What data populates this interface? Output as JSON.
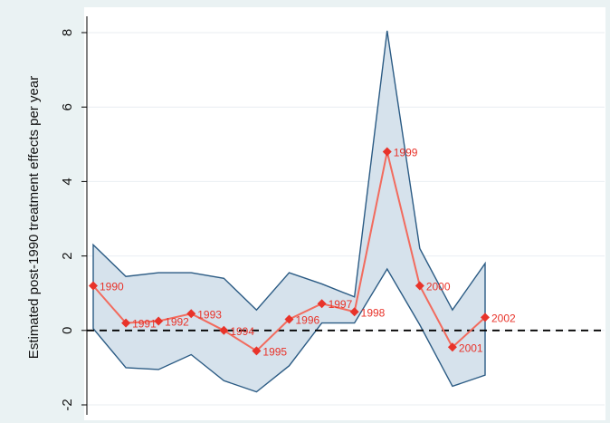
{
  "chart_data": {
    "type": "line",
    "title": "",
    "xlabel": "",
    "ylabel": "Estimated post-1990 treatment effects per year",
    "ylim": [
      -2.2,
      8.3
    ],
    "yticks": [
      -2,
      0,
      2,
      4,
      6,
      8
    ],
    "grid": true,
    "legend": "none",
    "reference_line": 0,
    "series": [
      {
        "type": "line-with-markers",
        "x": [
          1990,
          1991,
          1992,
          1993,
          1994,
          1995,
          1996,
          1997,
          1998,
          1999,
          2000,
          2001,
          2002
        ],
        "values": [
          1.2,
          0.2,
          0.25,
          0.45,
          0.0,
          -0.55,
          0.3,
          0.72,
          0.5,
          4.8,
          1.2,
          -0.45,
          0.35
        ],
        "labels": [
          "1990",
          "1991",
          "1992",
          "1993",
          "1994",
          "1995",
          "1996",
          "1997",
          "1998",
          "1999",
          "2000",
          "2001",
          "2002"
        ]
      }
    ],
    "confidence_band": {
      "x": [
        1990,
        1991,
        1992,
        1993,
        1994,
        1995,
        1996,
        1997,
        1998,
        1999,
        2000,
        2001,
        2002
      ],
      "upper": [
        2.3,
        1.45,
        1.55,
        1.55,
        1.4,
        0.55,
        1.55,
        1.25,
        0.9,
        8.05,
        2.2,
        0.55,
        1.8
      ],
      "lower": [
        0.05,
        -1.0,
        -1.05,
        -0.65,
        -1.35,
        -1.65,
        -0.95,
        0.2,
        0.2,
        1.65,
        0.15,
        -1.5,
        -1.2
      ]
    },
    "colors": {
      "line": "#f26b5e",
      "marker": "#e8332a",
      "label": "#e8332a",
      "band_fill": "#d6e2ec",
      "band_edge": "#2b5b84",
      "zero_line": "#000000",
      "plot_bg": "#ffffff",
      "frame_bg": "#eaf2f3",
      "grid": "#e9eef2"
    }
  }
}
